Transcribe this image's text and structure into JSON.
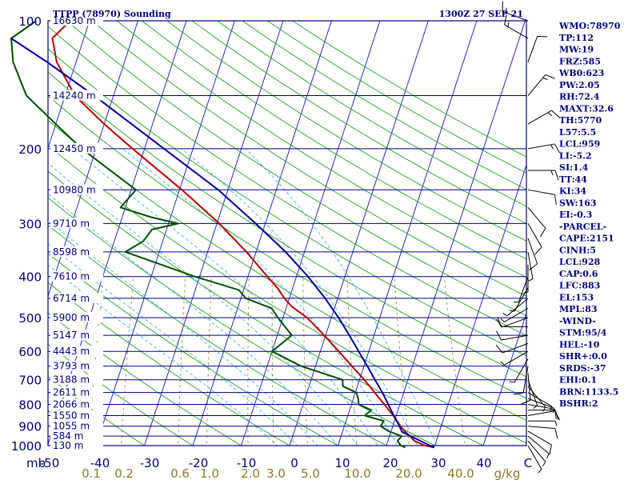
{
  "header": {
    "title": "TTPP (78970) Sounding",
    "time": "1300Z 27 SEP 21"
  },
  "indices": [
    "WMO:78970",
    "TP:112",
    "MW:19",
    "FRZ:585",
    "WB0:623",
    "PW:2.05",
    "RH:72.4",
    "MAXT:32.6",
    "TH:5770",
    "L57:5.5",
    "LCL:959",
    "LI:-5.2",
    "SI:1.4",
    "TT:44",
    "KI:34",
    "SW:163",
    "EI:-0.3",
    "-PARCEL-",
    "CAPE:2151",
    "CINH:5",
    "LCL:928",
    "CAP:0.6",
    "LFC:883",
    "EL:153",
    "MPL:83",
    "-WIND-",
    "STM:95/4",
    "HEL:-10",
    "SHR+:0.0",
    "SRDS:-37",
    "EHI:0.1",
    "BRN:1133.5",
    "BSHR:2"
  ],
  "colors": {
    "axes": "#000080",
    "isobar": "#000080",
    "isotherm": "#2828c8",
    "dry_adiabat": "#20a020",
    "moist_adiabat": "#40b0e0",
    "mixing_ratio": "#9a8a3a",
    "temperature": "#c00000",
    "dewpoint": "#005000",
    "parcel": "#0000a0",
    "wind": "#000000"
  },
  "chart_data": {
    "type": "skew-t log-p sounding",
    "title": "TTPP (78970) Sounding",
    "x_axis": {
      "unit": "C",
      "range": [
        -50,
        50
      ],
      "tick_labels": [
        "-50",
        "-40",
        "-30",
        "-20",
        "-10",
        "0",
        "10",
        "20",
        "30",
        "40",
        "C"
      ]
    },
    "y_axis": {
      "unit": "mb",
      "scale": "log",
      "range": [
        1000,
        100
      ],
      "tick_labels": [
        "100",
        "200",
        "300",
        "400",
        "500",
        "600",
        "700",
        "800",
        "900",
        "1000"
      ]
    },
    "mixing_ratio_axis": {
      "unit": "g/kg",
      "tick_labels": [
        "0.1",
        "0.2",
        "0.6",
        "1.0",
        "2.0",
        "3.0",
        "5.0",
        "10.0",
        "20.0",
        "40.0"
      ]
    },
    "height_levels": [
      {
        "p": 100,
        "label": "16630 m"
      },
      {
        "p": 150,
        "label": "14240 m"
      },
      {
        "p": 200,
        "label": "12450 m"
      },
      {
        "p": 250,
        "label": "10980 m"
      },
      {
        "p": 300,
        "label": "9710 m"
      },
      {
        "p": 350,
        "label": "8598 m"
      },
      {
        "p": 400,
        "label": "7610 m"
      },
      {
        "p": 450,
        "label": "6714 m"
      },
      {
        "p": 500,
        "label": "5900 m"
      },
      {
        "p": 550,
        "label": "5147 m"
      },
      {
        "p": 600,
        "label": "4443 m"
      },
      {
        "p": 650,
        "label": "3793 m"
      },
      {
        "p": 700,
        "label": "3188 m"
      },
      {
        "p": 750,
        "label": "2611 m"
      },
      {
        "p": 800,
        "label": "2066 m"
      },
      {
        "p": 850,
        "label": "1550 m"
      },
      {
        "p": 900,
        "label": "1055 m"
      },
      {
        "p": 950,
        "label": "584 m"
      },
      {
        "p": 1000,
        "label": "130 m"
      }
    ],
    "series": [
      {
        "name": "Temperature",
        "points": [
          [
            1010,
            30
          ],
          [
            1000,
            28
          ],
          [
            975,
            25.5
          ],
          [
            950,
            24.2
          ],
          [
            925,
            22.8
          ],
          [
            900,
            21.6
          ],
          [
            850,
            19.4
          ],
          [
            800,
            16.8
          ],
          [
            750,
            14
          ],
          [
            700,
            11
          ],
          [
            650,
            7.5
          ],
          [
            600,
            3.8
          ],
          [
            550,
            -0.3
          ],
          [
            500,
            -5
          ],
          [
            470,
            -9
          ],
          [
            450,
            -11
          ],
          [
            425,
            -13.2
          ],
          [
            400,
            -16
          ],
          [
            350,
            -22
          ],
          [
            300,
            -29.5
          ],
          [
            250,
            -39.5
          ],
          [
            200,
            -52.5
          ],
          [
            175,
            -60
          ],
          [
            150,
            -68
          ],
          [
            125,
            -74
          ],
          [
            110,
            -76.5
          ],
          [
            100,
            -74
          ]
        ]
      },
      {
        "name": "Dewpoint",
        "points": [
          [
            1010,
            24
          ],
          [
            1000,
            23
          ],
          [
            975,
            22
          ],
          [
            950,
            22.5
          ],
          [
            925,
            19.5
          ],
          [
            900,
            17.5
          ],
          [
            875,
            17.8
          ],
          [
            850,
            13.5
          ],
          [
            825,
            14.5
          ],
          [
            800,
            11.5
          ],
          [
            775,
            11
          ],
          [
            750,
            10.2
          ],
          [
            725,
            7
          ],
          [
            700,
            6.5
          ],
          [
            650,
            -3
          ],
          [
            600,
            -10
          ],
          [
            550,
            -7
          ],
          [
            500,
            -11
          ],
          [
            475,
            -13
          ],
          [
            450,
            -19
          ],
          [
            430,
            -21
          ],
          [
            400,
            -31
          ],
          [
            350,
            -47
          ],
          [
            330,
            -44
          ],
          [
            310,
            -43
          ],
          [
            300,
            -38
          ],
          [
            290,
            -44
          ],
          [
            275,
            -51
          ],
          [
            250,
            -49
          ],
          [
            200,
            -63
          ],
          [
            175,
            -70
          ],
          [
            150,
            -78
          ],
          [
            125,
            -83
          ],
          [
            110,
            -85
          ],
          [
            100,
            -81
          ]
        ]
      },
      {
        "name": "Parcel",
        "points": [
          [
            1010,
            30
          ],
          [
            1000,
            29
          ],
          [
            928,
            22.3
          ],
          [
            900,
            21.4
          ],
          [
            850,
            19.5
          ],
          [
            800,
            17.6
          ],
          [
            750,
            15.6
          ],
          [
            700,
            13.2
          ],
          [
            650,
            10.7
          ],
          [
            600,
            7.9
          ],
          [
            550,
            4.9
          ],
          [
            500,
            1.5
          ],
          [
            450,
            -2.6
          ],
          [
            400,
            -7.6
          ],
          [
            350,
            -13.9
          ],
          [
            300,
            -22
          ],
          [
            250,
            -32
          ],
          [
            200,
            -46
          ],
          [
            150,
            -64
          ],
          [
            125,
            -76
          ],
          [
            110,
            -85
          ]
        ]
      }
    ],
    "wind_barbs": [
      [
        1000,
        150,
        5
      ],
      [
        975,
        140,
        5
      ],
      [
        950,
        130,
        5
      ],
      [
        925,
        120,
        10
      ],
      [
        900,
        95,
        10
      ],
      [
        875,
        90,
        5
      ],
      [
        850,
        80,
        10
      ],
      [
        825,
        90,
        10
      ],
      [
        800,
        100,
        10
      ],
      [
        775,
        110,
        5
      ],
      [
        750,
        120,
        5
      ],
      [
        725,
        140,
        5
      ],
      [
        700,
        160,
        5
      ],
      [
        675,
        175,
        10
      ],
      [
        650,
        190,
        10
      ],
      [
        625,
        210,
        5
      ],
      [
        600,
        240,
        5
      ],
      [
        575,
        250,
        10
      ],
      [
        550,
        260,
        10
      ],
      [
        525,
        270,
        10
      ],
      [
        500,
        250,
        10
      ],
      [
        475,
        240,
        5
      ],
      [
        450,
        230,
        5
      ],
      [
        425,
        210,
        5
      ],
      [
        400,
        200,
        5
      ],
      [
        375,
        180,
        5
      ],
      [
        350,
        170,
        5
      ],
      [
        325,
        160,
        10
      ],
      [
        300,
        150,
        10
      ],
      [
        275,
        140,
        10
      ],
      [
        250,
        100,
        10
      ],
      [
        225,
        90,
        15
      ],
      [
        200,
        80,
        15
      ],
      [
        175,
        60,
        15
      ],
      [
        150,
        40,
        15
      ],
      [
        125,
        20,
        10
      ],
      [
        110,
        300,
        15
      ],
      [
        100,
        290,
        15
      ]
    ]
  }
}
